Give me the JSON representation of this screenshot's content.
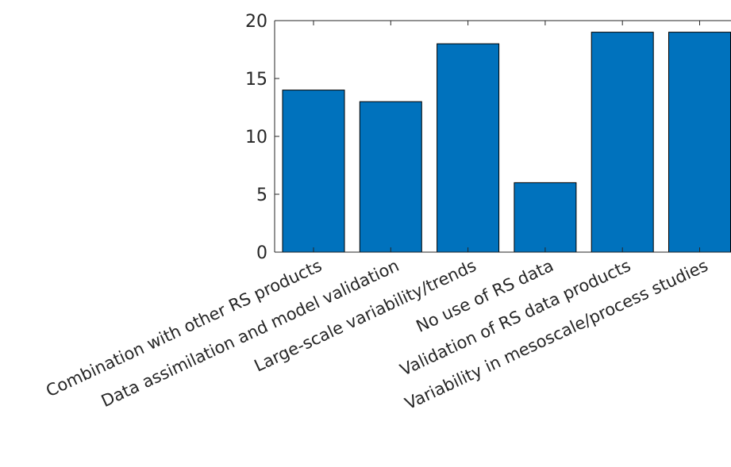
{
  "chart_data": {
    "type": "bar",
    "title": "",
    "xlabel": "",
    "ylabel": "",
    "categories": [
      "Combination with other RS products",
      "Data assimilation and model validation",
      "Large-scale variability/trends",
      "No use of RS data",
      "Validation of RS data products",
      "Variability in mesoscale/process studies"
    ],
    "values": [
      14,
      13,
      18,
      6,
      19,
      19
    ],
    "ylim": [
      0,
      20
    ],
    "yticks": [
      "0",
      "5",
      "10",
      "15",
      "20"
    ],
    "bar_color": "#0072BD",
    "grid": false,
    "legend": "none"
  }
}
